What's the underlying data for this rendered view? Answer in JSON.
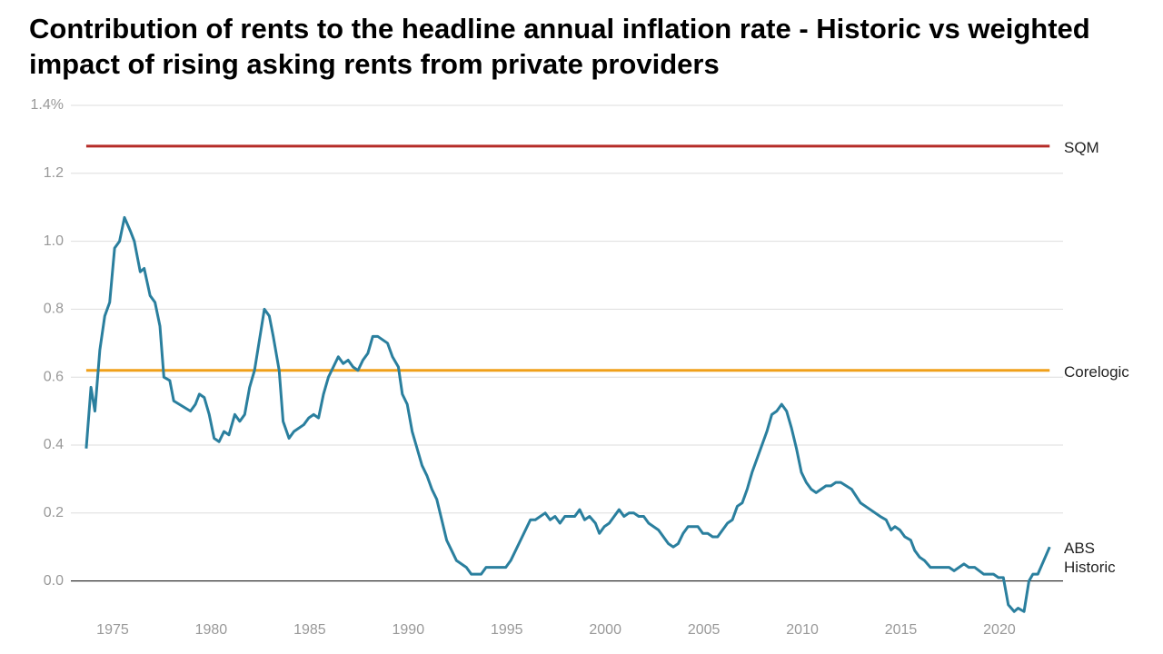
{
  "chart_data": {
    "type": "line",
    "title": "Contribution of rents to the headline annual inflation rate - Historic vs weighted impact of rising asking rents from private providers",
    "xlim": [
      1972.88,
      2023.23
    ],
    "xticks": [
      1975,
      1980,
      1985,
      1990,
      1995,
      2000,
      2005,
      2010,
      2015,
      2020
    ],
    "ylim": [
      -0.1,
      1.4
    ],
    "yticks": [
      {
        "value": 0,
        "label": "0.0"
      },
      0.2,
      0.4,
      0.6,
      0.8,
      {
        "value": 1,
        "label": "1.0"
      },
      1.2,
      {
        "value": 1.4,
        "label": "1.4%"
      }
    ],
    "grid": true,
    "series": [
      {
        "name": "SQM",
        "color": "#b52b27",
        "x": [
          1973.66,
          2022.55
        ],
        "values": [
          1.28,
          1.28
        ]
      },
      {
        "name": "Corelogic",
        "color": "#f0a01a",
        "x": [
          1973.66,
          2022.55
        ],
        "values": [
          0.62,
          0.62
        ]
      },
      {
        "name": "ABS Historic",
        "color": "#2a7f9e",
        "x": [
          1973.66,
          1973.9,
          1974.1,
          1974.35,
          1974.6,
          1974.85,
          1975.1,
          1975.35,
          1975.6,
          1975.9,
          1976.1,
          1976.4,
          1976.6,
          1976.9,
          1977.15,
          1977.4,
          1977.6,
          1977.9,
          1978.1,
          1978.95,
          1979.2,
          1979.4,
          1979.65,
          1979.9,
          1980.15,
          1980.4,
          1980.65,
          1980.9,
          1981.2,
          1981.45,
          1981.7,
          1981.95,
          1982.2,
          1982.45,
          1982.7,
          1982.95,
          1983.15,
          1983.45,
          1983.65,
          1983.95,
          1984.2,
          1984.7,
          1984.95,
          1985.2,
          1985.45,
          1985.7,
          1985.95,
          1986.2,
          1986.45,
          1986.7,
          1986.95,
          1987.2,
          1987.45,
          1987.7,
          1987.95,
          1988.2,
          1988.45,
          1988.7,
          1988.95,
          1989.2,
          1989.5,
          1989.7,
          1989.95,
          1990.2,
          1990.45,
          1990.7,
          1990.95,
          1991.2,
          1991.45,
          1991.7,
          1991.95,
          1992.2,
          1992.45,
          1992.7,
          1992.95,
          1993.2,
          1993.7,
          1993.95,
          1994.95,
          1995.2,
          1995.7,
          1996.2,
          1996.45,
          1996.95,
          1997.2,
          1997.45,
          1997.7,
          1997.95,
          1998.45,
          1998.7,
          1998.95,
          1999.2,
          1999.5,
          1999.7,
          1999.95,
          2000.2,
          2000.45,
          2000.7,
          2000.95,
          2001.2,
          2001.45,
          2001.7,
          2001.95,
          2002.2,
          2002.7,
          2003.2,
          2003.45,
          2003.7,
          2003.95,
          2004.2,
          2004.7,
          2004.95,
          2005.2,
          2005.45,
          2005.7,
          2006.2,
          2006.45,
          2006.7,
          2006.95,
          2007.2,
          2007.45,
          2007.95,
          2008.2,
          2008.45,
          2008.7,
          2008.95,
          2009.2,
          2009.45,
          2009.7,
          2009.95,
          2010.2,
          2010.45,
          2010.7,
          2010.95,
          2011.2,
          2011.45,
          2011.7,
          2011.95,
          2012.5,
          2012.95,
          2013.45,
          2013.95,
          2014.25,
          2014.5,
          2014.7,
          2014.95,
          2015.2,
          2015.5,
          2015.7,
          2015.95,
          2016.2,
          2016.5,
          2017.45,
          2017.7,
          2018.2,
          2018.45,
          2018.75,
          2019.2,
          2019.7,
          2019.95,
          2020.2,
          2020.45,
          2020.75,
          2020.95,
          2021.25,
          2021.5,
          2021.7,
          2021.95,
          2022.55
        ],
        "values": [
          0.39,
          0.57,
          0.5,
          0.68,
          0.78,
          0.82,
          0.98,
          1,
          1.07,
          1.03,
          1,
          0.91,
          0.92,
          0.84,
          0.82,
          0.75,
          0.6,
          0.59,
          0.53,
          0.5,
          0.52,
          0.55,
          0.54,
          0.49,
          0.42,
          0.41,
          0.44,
          0.43,
          0.49,
          0.47,
          0.49,
          0.57,
          0.62,
          0.71,
          0.8,
          0.78,
          0.72,
          0.62,
          0.47,
          0.42,
          0.44,
          0.46,
          0.48,
          0.49,
          0.48,
          0.55,
          0.6,
          0.63,
          0.66,
          0.64,
          0.65,
          0.63,
          0.62,
          0.65,
          0.67,
          0.72,
          0.72,
          0.71,
          0.7,
          0.66,
          0.63,
          0.55,
          0.52,
          0.44,
          0.39,
          0.34,
          0.31,
          0.27,
          0.24,
          0.18,
          0.12,
          0.09,
          0.06,
          0.05,
          0.04,
          0.02,
          0.02,
          0.04,
          0.04,
          0.06,
          0.12,
          0.18,
          0.18,
          0.2,
          0.18,
          0.19,
          0.17,
          0.19,
          0.19,
          0.21,
          0.18,
          0.19,
          0.17,
          0.14,
          0.16,
          0.17,
          0.19,
          0.21,
          0.19,
          0.2,
          0.2,
          0.19,
          0.19,
          0.17,
          0.15,
          0.11,
          0.1,
          0.11,
          0.14,
          0.16,
          0.16,
          0.14,
          0.14,
          0.13,
          0.13,
          0.17,
          0.18,
          0.22,
          0.23,
          0.27,
          0.32,
          0.4,
          0.44,
          0.49,
          0.5,
          0.52,
          0.5,
          0.45,
          0.39,
          0.32,
          0.29,
          0.27,
          0.26,
          0.27,
          0.28,
          0.28,
          0.29,
          0.29,
          0.27,
          0.23,
          0.21,
          0.19,
          0.18,
          0.15,
          0.16,
          0.15,
          0.13,
          0.12,
          0.09,
          0.07,
          0.06,
          0.04,
          0.04,
          0.03,
          0.05,
          0.04,
          0.04,
          0.02,
          0.02,
          0.01,
          0.01,
          -0.07,
          -0.09,
          -0.08,
          -0.09,
          0,
          0.02,
          0.02,
          0.1
        ]
      }
    ]
  }
}
